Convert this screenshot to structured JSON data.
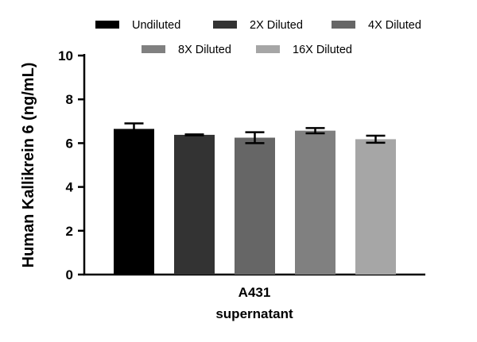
{
  "chart_data": {
    "type": "bar",
    "title": "",
    "ylabel": "Human Kallikrein 6 (ng/mL)",
    "xlabel": "",
    "group_label_lines": [
      "A431",
      "supernatant"
    ],
    "ylim": [
      0,
      10
    ],
    "yticks": [
      0,
      2,
      4,
      6,
      8,
      10
    ],
    "categories": [
      "A431 supernatant"
    ],
    "legend_position": "top",
    "series": [
      {
        "name": "Undiluted",
        "values": [
          6.65
        ],
        "error": [
          0.25
        ],
        "color": "#000000"
      },
      {
        "name": "2X Diluted",
        "values": [
          6.38
        ],
        "error": [
          0.02
        ],
        "color": "#333333"
      },
      {
        "name": "4X Diluted",
        "values": [
          6.25
        ],
        "error": [
          0.25
        ],
        "color": "#666666"
      },
      {
        "name": "8X Diluted",
        "values": [
          6.57
        ],
        "error": [
          0.12
        ],
        "color": "#808080"
      },
      {
        "name": "16X Diluted",
        "values": [
          6.18
        ],
        "error": [
          0.16
        ],
        "color": "#a6a6a6"
      }
    ]
  }
}
